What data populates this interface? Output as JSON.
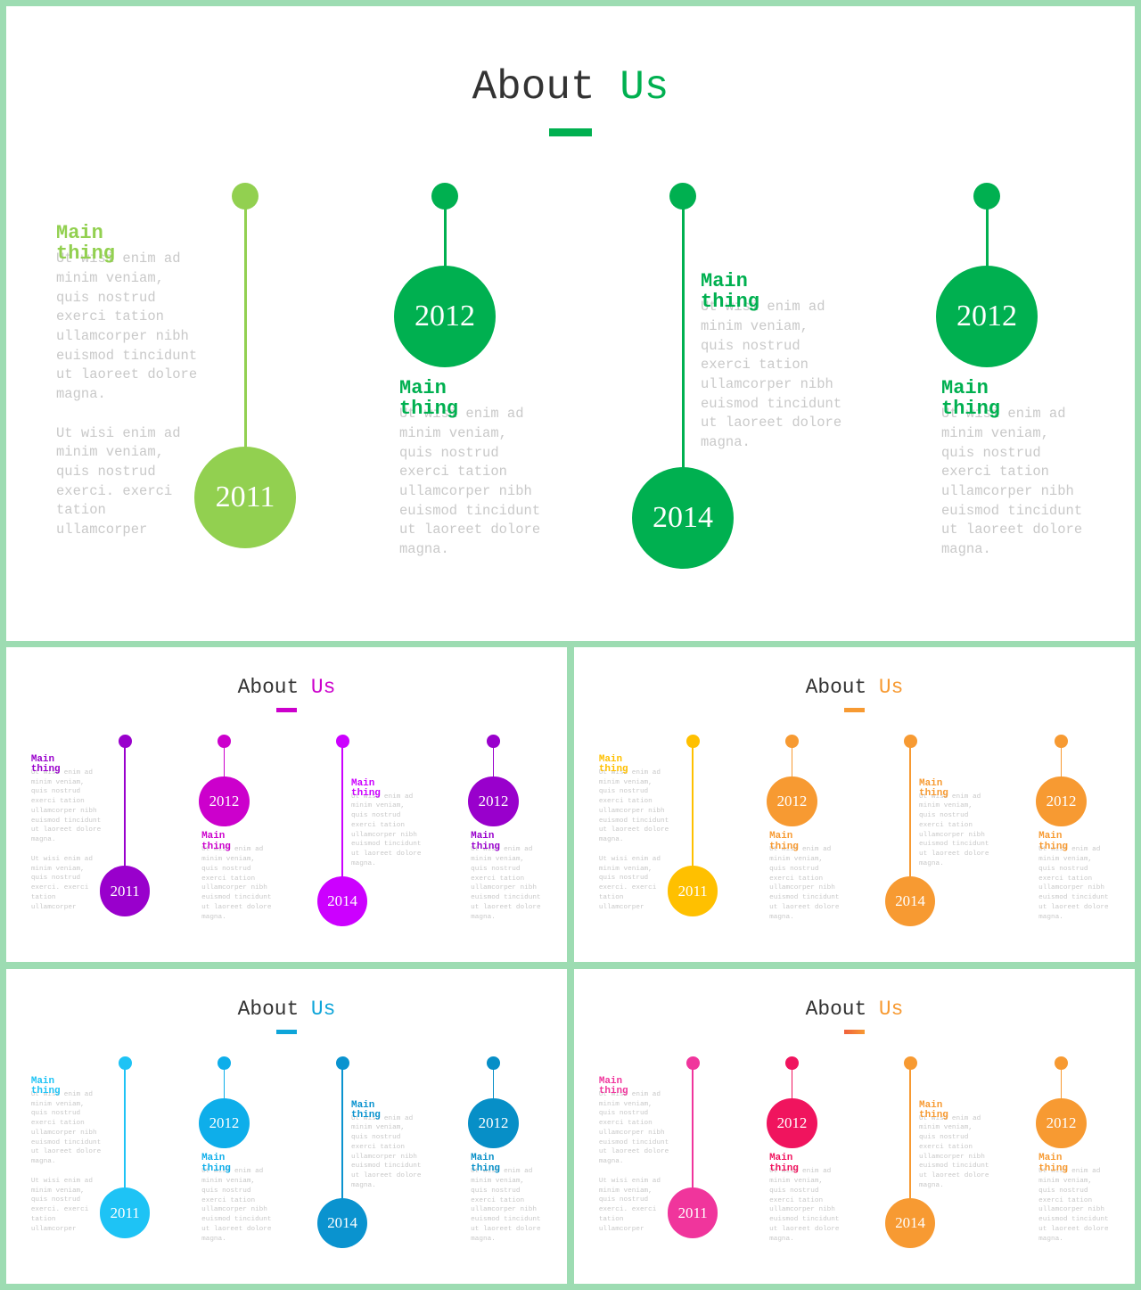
{
  "slides": [
    {
      "title_word": "About",
      "title_accent": "Us",
      "accent_color": "#00b050",
      "items": [
        {
          "year": "2011",
          "heading": "Main thing",
          "text": "Ut wisi enim ad minim veniam, quis nostrud exerci tation ullamcorper nibh euismod tincidunt ut laoreet dolore magna.",
          "text2": "Ut wisi enim ad minim veniam, quis nostrud exerci. exerci tation ullamcorper",
          "color": "#92d050"
        },
        {
          "year": "2012",
          "heading": "Main thing",
          "text": "Ut wisi enim ad minim veniam, quis nostrud exerci tation ullamcorper nibh euismod tincidunt ut laoreet dolore magna.",
          "color": "#00b050"
        },
        {
          "year": "2014",
          "heading": "Main thing",
          "text": "Ut wisi enim ad minim veniam, quis nostrud exerci tation ullamcorper nibh euismod tincidunt ut laoreet dolore magna.",
          "color": "#00b050"
        },
        {
          "year": "2012",
          "heading": "Main thing",
          "text": "Ut wisi enim ad minim veniam, quis nostrud exerci tation ullamcorper nibh euismod tincidunt ut laoreet dolore magna.",
          "color": "#00b050"
        }
      ]
    },
    {
      "title_word": "About",
      "title_accent": "Us",
      "accent_color": "#cc00cc",
      "items": [
        {
          "year": "2011",
          "heading": "Main thing",
          "text": "Ut wisi enim ad minim veniam, quis nostrud exerci tation ullamcorper nibh euismod tincidunt ut laoreet dolore magna.",
          "text2": "Ut wisi enim ad minim veniam, quis nostrud exerci. exerci tation ullamcorper",
          "color": "#9900cc"
        },
        {
          "year": "2012",
          "heading": "Main thing",
          "text": "Ut wisi enim ad minim veniam, quis nostrud exerci tation ullamcorper nibh euismod tincidunt ut laoreet dolore magna.",
          "color": "#cc00cc"
        },
        {
          "year": "2014",
          "heading": "Main thing",
          "text": "Ut wisi enim ad minim veniam, quis nostrud exerci tation ullamcorper nibh euismod tincidunt ut laoreet dolore magna.",
          "color": "#cc00ff"
        },
        {
          "year": "2012",
          "heading": "Main thing",
          "text": "Ut wisi enim ad minim veniam, quis nostrud exerci tation ullamcorper nibh euismod tincidunt ut laoreet dolore magna.",
          "color": "#9900cc"
        }
      ]
    },
    {
      "title_word": "About",
      "title_accent": "Us",
      "accent_color": "#f79a32",
      "items": [
        {
          "year": "2011",
          "heading": "Main thing",
          "text": "Ut wisi enim ad minim veniam, quis nostrud exerci tation ullamcorper nibh euismod tincidunt ut laoreet dolore magna.",
          "text2": "Ut wisi enim ad minim veniam, quis nostrud exerci. exerci tation ullamcorper",
          "color": "#ffc000"
        },
        {
          "year": "2012",
          "heading": "Main thing",
          "text": "Ut wisi enim ad minim veniam, quis nostrud exerci tation ullamcorper nibh euismod tincidunt ut laoreet dolore magna.",
          "color": "#f79a32"
        },
        {
          "year": "2014",
          "heading": "Main thing",
          "text": "Ut wisi enim ad minim veniam, quis nostrud exerci tation ullamcorper nibh euismod tincidunt ut laoreet dolore magna.",
          "color": "#f79a32"
        },
        {
          "year": "2012",
          "heading": "Main thing",
          "text": "Ut wisi enim ad minim veniam, quis nostrud exerci tation ullamcorper nibh euismod tincidunt ut laoreet dolore magna.",
          "color": "#f79a32"
        }
      ]
    },
    {
      "title_word": "About",
      "title_accent": "Us",
      "accent_color": "#0ea5d9",
      "items": [
        {
          "year": "2011",
          "heading": "Main thing",
          "text": "Ut wisi enim ad minim veniam, quis nostrud exerci tation ullamcorper nibh euismod tincidunt ut laoreet dolore magna.",
          "text2": "Ut wisi enim ad minim veniam, quis nostrud exerci. exerci tation ullamcorper",
          "color": "#1ec3f5"
        },
        {
          "year": "2012",
          "heading": "Main thing",
          "text": "Ut wisi enim ad minim veniam, quis nostrud exerci tation ullamcorper nibh euismod tincidunt ut laoreet dolore magna.",
          "color": "#0eaeea"
        },
        {
          "year": "2014",
          "heading": "Main thing",
          "text": "Ut wisi enim ad minim veniam, quis nostrud exerci tation ullamcorper nibh euismod tincidunt ut laoreet dolore magna.",
          "color": "#0a93cf"
        },
        {
          "year": "2012",
          "heading": "Main thing",
          "text": "Ut wisi enim ad minim veniam, quis nostrud exerci tation ullamcorper nibh euismod tincidunt ut laoreet dolore magna.",
          "color": "#078fc7"
        }
      ]
    },
    {
      "title_word": "About",
      "title_accent": "Us",
      "accent_color": "#f79a32",
      "underline_color": "#f0603c",
      "items": [
        {
          "year": "2011",
          "heading": "Main thing",
          "text": "Ut wisi enim ad minim veniam, quis nostrud exerci tation ullamcorper nibh euismod tincidunt ut laoreet dolore magna.",
          "text2": "Ut wisi enim ad minim veniam, quis nostrud exerci. exerci tation ullamcorper",
          "color": "#f0359c"
        },
        {
          "year": "2012",
          "heading": "Main thing",
          "text": "Ut wisi enim ad minim veniam, quis nostrud exerci tation ullamcorper nibh euismod tincidunt ut laoreet dolore magna.",
          "color": "#f0145e"
        },
        {
          "year": "2014",
          "heading": "Main thing",
          "text": "Ut wisi enim ad minim veniam, quis nostrud exerci tation ullamcorper nibh euismod tincidunt ut laoreet dolore magna.",
          "color": "#f79a32"
        },
        {
          "year": "2012",
          "heading": "Main thing",
          "text": "Ut wisi enim ad minim veniam, quis nostrud exerci tation ullamcorper nibh euismod tincidunt ut laoreet dolore magna.",
          "color": "#f79a32"
        }
      ]
    }
  ]
}
